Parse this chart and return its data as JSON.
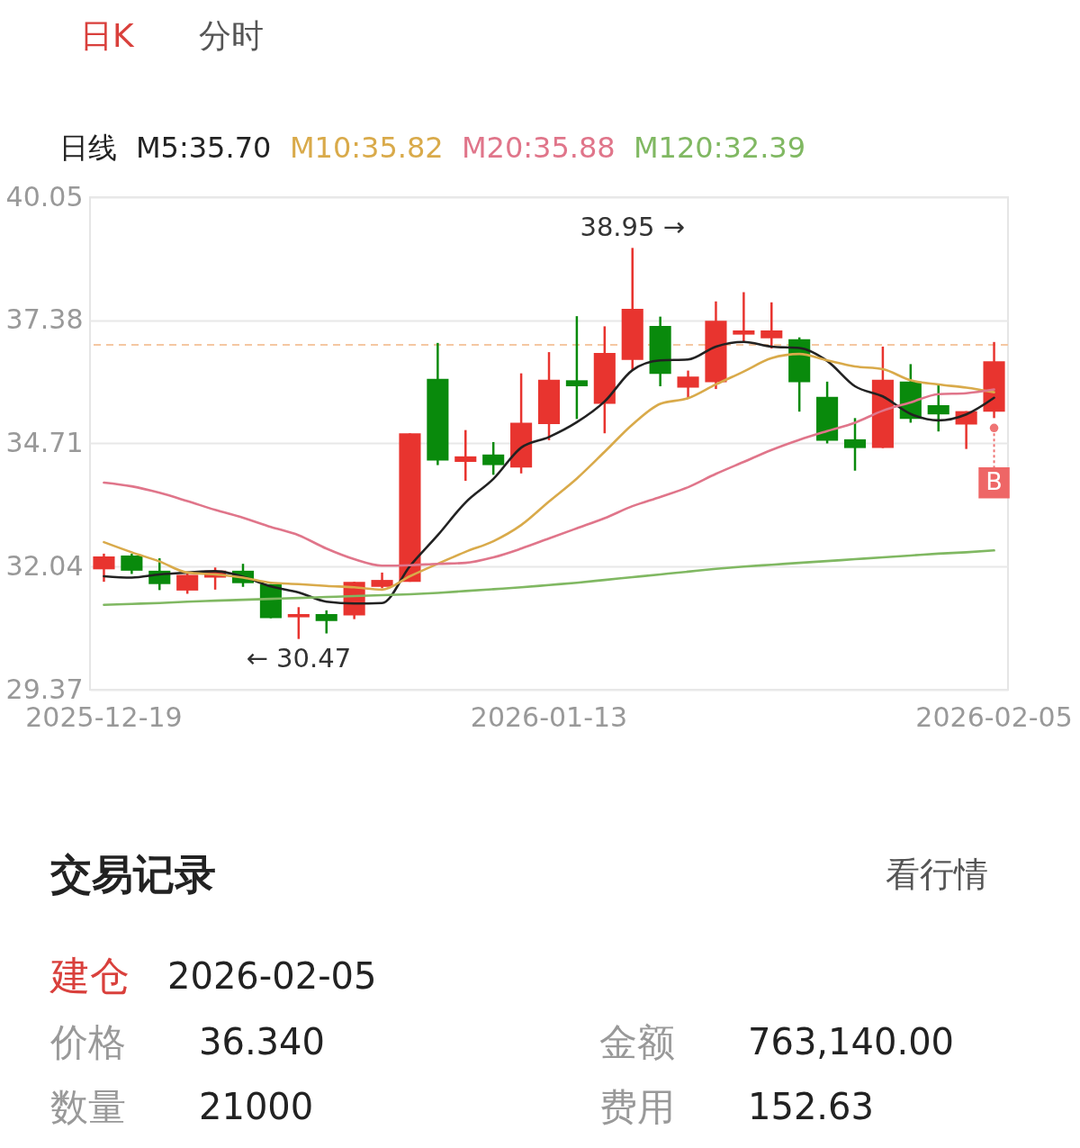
{
  "chart_data": [
    {
      "type": "candlestick",
      "annotations": [
        "日K",
        "分时",
        {
          "text": "38.95 →",
          "y": 38.95
        },
        {
          "text": "← 30.47",
          "y": 30.47
        },
        {
          "text": "B",
          "x": "2026-02-05",
          "y": 35.26
        }
      ],
      "legend_title": "日线",
      "categories": [
        "2025-12-19",
        null,
        null,
        null,
        null,
        null,
        null,
        null,
        null,
        null,
        null,
        null,
        null,
        null,
        null,
        null,
        "2026-01-13",
        null,
        null,
        null,
        null,
        null,
        null,
        null,
        null,
        null,
        null,
        null,
        null,
        null,
        null,
        null,
        "2026-02-05"
      ],
      "ohlc": [
        [
          31.98,
          32.32,
          31.71,
          32.26
        ],
        [
          32.28,
          32.32,
          31.88,
          31.95
        ],
        [
          31.95,
          32.22,
          31.53,
          31.66
        ],
        [
          31.52,
          31.89,
          31.45,
          31.86
        ],
        [
          31.8,
          32.02,
          31.54,
          31.95
        ],
        [
          31.95,
          32.1,
          31.6,
          31.68
        ],
        [
          31.66,
          31.66,
          30.92,
          30.92
        ],
        [
          30.94,
          31.16,
          30.47,
          31.01
        ],
        [
          31.01,
          31.09,
          30.59,
          30.86
        ],
        [
          30.98,
          31.71,
          30.9,
          31.71
        ],
        [
          31.6,
          31.91,
          31.57,
          31.75
        ],
        [
          31.71,
          34.93,
          31.71,
          34.93
        ],
        [
          36.11,
          36.89,
          34.24,
          34.34
        ],
        [
          34.31,
          35.0,
          33.9,
          34.43
        ],
        [
          34.47,
          34.74,
          34.03,
          34.24
        ],
        [
          34.19,
          36.23,
          34.06,
          35.16
        ],
        [
          35.13,
          36.69,
          34.78,
          36.09
        ],
        [
          36.08,
          37.47,
          35.24,
          35.95
        ],
        [
          35.57,
          37.25,
          34.93,
          36.67
        ],
        [
          36.52,
          38.95,
          36.31,
          37.63
        ],
        [
          37.26,
          37.46,
          35.95,
          36.22
        ],
        [
          35.92,
          36.29,
          35.7,
          36.16
        ],
        [
          36.04,
          37.79,
          35.89,
          37.37
        ],
        [
          37.07,
          37.99,
          36.89,
          37.16
        ],
        [
          36.99,
          37.77,
          36.77,
          37.16
        ],
        [
          36.97,
          37.01,
          35.4,
          36.04
        ],
        [
          35.72,
          36.05,
          34.71,
          34.77
        ],
        [
          34.8,
          35.26,
          34.12,
          34.61
        ],
        [
          34.61,
          36.81,
          34.61,
          36.09
        ],
        [
          36.05,
          36.43,
          35.16,
          35.24
        ],
        [
          35.54,
          35.98,
          34.97,
          35.34
        ],
        [
          35.12,
          35.41,
          34.59,
          35.41
        ],
        [
          35.4,
          36.91,
          35.26,
          36.49
        ]
      ],
      "colors": [
        "#e8342f",
        "#098a0c",
        "#098a0c",
        "#e8342f",
        "#e8342f",
        "#098a0c",
        "#098a0c",
        "#e8342f",
        "#098a0c",
        "#e8342f",
        "#e8342f",
        "#e8342f",
        "#098a0c",
        "#e8342f",
        "#098a0c",
        "#e8342f",
        "#e8342f",
        "#098a0c",
        "#e8342f",
        "#e8342f",
        "#098a0c",
        "#e8342f",
        "#e8342f",
        "#e8342f",
        "#e8342f",
        "#098a0c",
        "#098a0c",
        "#098a0c",
        "#e8342f",
        "#098a0c",
        "#098a0c",
        "#e8342f",
        "#e8342f"
      ],
      "series": [
        {
          "name": "M5:35.70",
          "type": "line",
          "color": "#222222",
          "values": [
            31.83,
            31.8,
            31.87,
            31.91,
            31.94,
            31.82,
            31.61,
            31.48,
            31.28,
            31.24,
            31.25,
            32.05,
            32.72,
            33.43,
            33.94,
            34.62,
            34.85,
            35.17,
            35.62,
            36.3,
            36.51,
            36.53,
            36.81,
            36.91,
            36.81,
            36.78,
            36.5,
            35.95,
            35.73,
            35.35,
            35.21,
            35.34,
            35.7
          ]
        },
        {
          "name": "M10:35.82",
          "type": "line",
          "color": "#d9aa4a",
          "values": [
            32.57,
            32.35,
            32.15,
            31.91,
            31.87,
            31.8,
            31.69,
            31.66,
            31.62,
            31.59,
            31.54,
            31.83,
            32.1,
            32.36,
            32.59,
            32.94,
            33.45,
            33.95,
            34.53,
            35.12,
            35.57,
            35.69,
            35.99,
            36.27,
            36.56,
            36.65,
            36.51,
            36.38,
            36.32,
            36.08,
            35.99,
            35.92,
            35.82
          ]
        },
        {
          "name": "M20:35.88",
          "type": "line",
          "color": "#e0758a",
          "values": [
            33.86,
            33.78,
            33.64,
            33.46,
            33.27,
            33.1,
            32.9,
            32.72,
            32.43,
            32.2,
            32.06,
            32.07,
            32.1,
            32.12,
            32.24,
            32.43,
            32.65,
            32.87,
            33.09,
            33.35,
            33.55,
            33.76,
            34.05,
            34.31,
            34.57,
            34.79,
            34.98,
            35.16,
            35.42,
            35.6,
            35.78,
            35.8,
            35.88
          ]
        },
        {
          "name": "M120:32.39",
          "type": "line",
          "color": "#80b862",
          "values": [
            31.21,
            31.23,
            31.25,
            31.28,
            31.3,
            31.32,
            31.34,
            31.36,
            31.38,
            31.4,
            31.42,
            31.44,
            31.47,
            31.51,
            31.55,
            31.59,
            31.64,
            31.69,
            31.75,
            31.81,
            31.87,
            31.93,
            31.99,
            32.04,
            32.08,
            32.12,
            32.16,
            32.2,
            32.24,
            32.28,
            32.32,
            32.35,
            32.39
          ]
        }
      ],
      "ylim": [
        29.37,
        40.05
      ],
      "yticks": [
        29.37,
        32.04,
        34.71,
        37.38,
        40.05
      ],
      "grid": "y",
      "legend": "top left",
      "ref_lines": [
        {
          "axis": "y",
          "value": 36.85,
          "color": "#f5c7a2",
          "line_style": "dashed"
        }
      ]
    },
    {
      "type": "other",
      "annotations": [
        "交易记录",
        "看行情",
        "建仓",
        "2026-02-05",
        "价格",
        "36.340",
        "金额",
        "763,140.00",
        "数量",
        "21000",
        "费用",
        "152.63"
      ]
    }
  ]
}
